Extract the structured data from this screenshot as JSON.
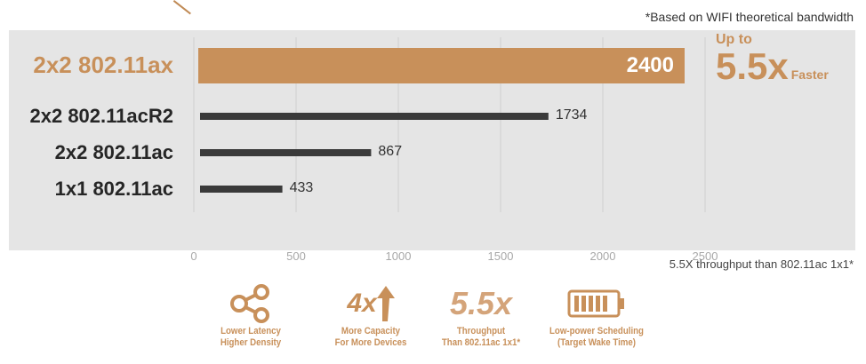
{
  "note_top": "*Based on WIFI theoretical bandwidth",
  "note_bottom": "5.5X throughput than 802.11ac 1x1*",
  "callout": {
    "up_to": "Up to",
    "big": "5.5x",
    "faster": "Faster"
  },
  "colors": {
    "accent": "#c8905a",
    "bar": "#3a3a3a",
    "panel": "#e5e5e5",
    "grid": "#cfcfcf",
    "tick": "#a8a8a8"
  },
  "chart_data": {
    "type": "bar",
    "orientation": "horizontal",
    "categories": [
      "2x2 802.11ax",
      "2x2 802.11acR2",
      "2x2 802.11ac",
      "1x1 802.11ac"
    ],
    "values": [
      2400,
      1734,
      867,
      433
    ],
    "value_labels": [
      "2400",
      "1734",
      "867",
      "433"
    ],
    "highlight_index": 0,
    "xlim": [
      0,
      2500
    ],
    "xticks": [
      0,
      500,
      1000,
      1500,
      2000,
      2500
    ],
    "xtick_labels": [
      "0",
      "500",
      "1000",
      "1500",
      "2000",
      "2500"
    ],
    "grid": true
  },
  "features": [
    {
      "icon": "share-icon",
      "line1": "Lower Latency",
      "line2": "Higher Density"
    },
    {
      "icon": "4x-arrow-icon",
      "icon_text": "4x",
      "line1": "More Capacity",
      "line2": "For More Devices"
    },
    {
      "icon": "5-5x-icon",
      "icon_text": "5.5x",
      "line1": "Throughput",
      "line2": "Than 802.11ac 1x1*"
    },
    {
      "icon": "battery-icon",
      "line1": "Low-power Scheduling",
      "line2": "(Target Wake Time)"
    }
  ]
}
